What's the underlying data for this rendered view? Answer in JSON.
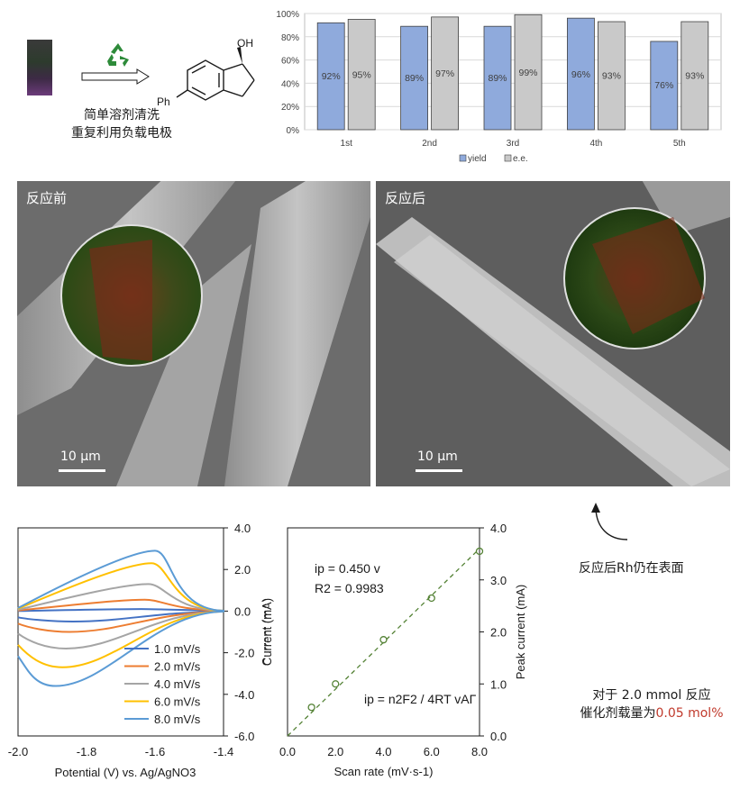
{
  "scheme": {
    "caption_line1": "简单溶剂清洗",
    "caption_line2": "重复利用负载电极",
    "substituent_label": "Ph",
    "hydroxyl_label": "OH",
    "recycle_icon": "recycle-icon",
    "arrow_icon": "hollow-right-arrow-icon"
  },
  "sem": {
    "left_label": "反应前",
    "right_label": "反应后",
    "scalebar_label": "10 µm"
  },
  "annotation": {
    "rh_note": "反应后Rh仍在表面"
  },
  "loading_note": {
    "line1": "对于 2.0 mmol 反应",
    "line2_prefix": "催化剂载量为",
    "line2_value": "0.05 mol%",
    "highlight_color": "#c0392b"
  },
  "chart_data": [
    {
      "type": "bar",
      "categories": [
        "1st",
        "2nd",
        "3rd",
        "4th",
        "5th"
      ],
      "series": [
        {
          "name": "yield",
          "values": [
            92,
            89,
            89,
            96,
            76
          ],
          "color": "#8faadc"
        },
        {
          "name": "e.e.",
          "values": [
            95,
            97,
            99,
            93,
            93
          ],
          "color": "#c9c9c9"
        }
      ],
      "data_labels": [
        [
          "92%",
          "89%",
          "89%",
          "96%",
          "76%"
        ],
        [
          "95%",
          "97%",
          "99%",
          "93%",
          "93%"
        ]
      ],
      "yticks": [
        "0%",
        "20%",
        "40%",
        "60%",
        "80%",
        "100%"
      ],
      "ylim": [
        0,
        100
      ],
      "legend": "bottom",
      "grid": true
    },
    {
      "type": "line",
      "xlabel": "Potential (V) vs. Ag/AgNO3",
      "ylabel": "Current (mA)",
      "xlim": [
        -2.0,
        -1.4
      ],
      "ylim": [
        -6.0,
        4.0
      ],
      "xticks": [
        "-2.0",
        "-1.8",
        "-1.6",
        "-1.4"
      ],
      "yticks": [
        "4.0",
        "2.0",
        "0.0",
        "-2.0",
        "-4.0",
        "-6.0"
      ],
      "legend": "bottom-right",
      "series": [
        {
          "name": "1.0 mV/s",
          "color": "#4472c4",
          "peak_anodic": [
            -1.64,
            0.1
          ],
          "peak_cathodic": [
            -1.84,
            -0.5
          ]
        },
        {
          "name": "2.0 mV/s",
          "color": "#ed7d31",
          "peak_anodic": [
            -1.63,
            0.55
          ],
          "peak_cathodic": [
            -1.85,
            -1.0
          ]
        },
        {
          "name": "4.0 mV/s",
          "color": "#a5a5a5",
          "peak_anodic": [
            -1.62,
            1.3
          ],
          "peak_cathodic": [
            -1.86,
            -1.8
          ]
        },
        {
          "name": "6.0 mV/s",
          "color": "#ffc000",
          "peak_anodic": [
            -1.61,
            2.3
          ],
          "peak_cathodic": [
            -1.87,
            -2.7
          ]
        },
        {
          "name": "8.0 mV/s",
          "color": "#5b9bd5",
          "peak_anodic": [
            -1.6,
            2.9
          ],
          "peak_cathodic": [
            -1.89,
            -3.6
          ]
        }
      ]
    },
    {
      "type": "scatter",
      "xlabel": "Scan rate (mV·s-1)",
      "ylabel": "Peak current (mA)",
      "xlim": [
        0,
        8
      ],
      "ylim": [
        0,
        4
      ],
      "xticks": [
        "0.0",
        "2.0",
        "4.0",
        "6.0",
        "8.0"
      ],
      "yticks": [
        "0.0",
        "1.0",
        "2.0",
        "3.0",
        "4.0"
      ],
      "points": [
        [
          1.0,
          0.55
        ],
        [
          2.0,
          1.0
        ],
        [
          4.0,
          1.85
        ],
        [
          6.0,
          2.65
        ],
        [
          8.0,
          3.55
        ]
      ],
      "fit_line": {
        "slope": 0.45,
        "intercept": 0
      },
      "equation": "ip = 0.450 v",
      "r_squared": "R2 = 0.9983",
      "model": "ip = n2F2 / 4RT vAΓ",
      "marker_color": "#548235"
    }
  ]
}
